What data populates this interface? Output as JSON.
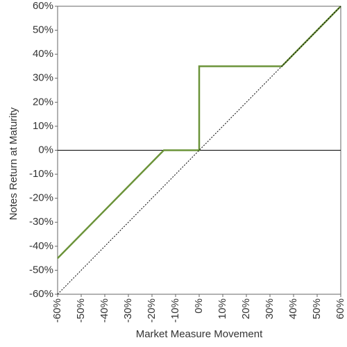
{
  "chart_data": {
    "type": "line",
    "xlabel": "Market Measure Movement",
    "ylabel": "Notes Return at Maturity",
    "xlim": [
      -60,
      60
    ],
    "ylim": [
      -60,
      60
    ],
    "xticks": [
      {
        "value": -60,
        "label": "-60%"
      },
      {
        "value": -50,
        "label": "-50%"
      },
      {
        "value": -40,
        "label": "-40%"
      },
      {
        "value": -30,
        "label": "-30%"
      },
      {
        "value": -20,
        "label": "-20%"
      },
      {
        "value": -10,
        "label": "-10%"
      },
      {
        "value": 0,
        "label": "0%"
      },
      {
        "value": 10,
        "label": "10%"
      },
      {
        "value": 20,
        "label": "20%"
      },
      {
        "value": 30,
        "label": "30%"
      },
      {
        "value": 40,
        "label": "40%"
      },
      {
        "value": 50,
        "label": "50%"
      },
      {
        "value": 60,
        "label": "60%"
      }
    ],
    "yticks": [
      {
        "value": -60,
        "label": "-60%"
      },
      {
        "value": -50,
        "label": "-50%"
      },
      {
        "value": -40,
        "label": "-40%"
      },
      {
        "value": -30,
        "label": "-30%"
      },
      {
        "value": -20,
        "label": "-20%"
      },
      {
        "value": -10,
        "label": "-10%"
      },
      {
        "value": 0,
        "label": "0%"
      },
      {
        "value": 10,
        "label": "10%"
      },
      {
        "value": 20,
        "label": "20%"
      },
      {
        "value": 30,
        "label": "30%"
      },
      {
        "value": 40,
        "label": "40%"
      },
      {
        "value": 50,
        "label": "50%"
      },
      {
        "value": 60,
        "label": "60%"
      }
    ],
    "series": [
      {
        "color": "#6b9339",
        "style": "solid",
        "x": [
          -60,
          -15,
          0,
          0,
          35,
          60
        ],
        "values": [
          -45,
          0,
          0,
          35,
          35,
          60
        ]
      },
      {
        "color": "#000000",
        "style": "dotted",
        "x": [
          -60,
          60
        ],
        "values": [
          -60,
          60
        ]
      }
    ]
  }
}
